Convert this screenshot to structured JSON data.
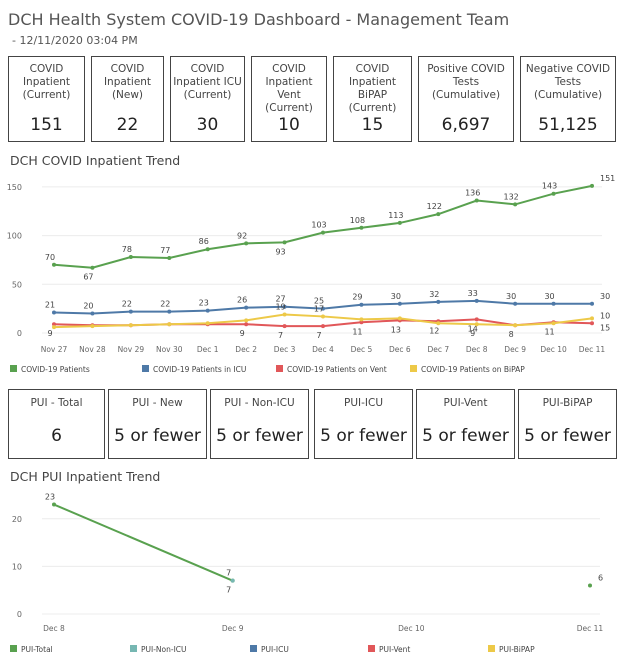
{
  "header": {
    "title": "DCH Health System COVID-19 Dashboard - Management Team",
    "timestamp": " - 12/11/2020 03:04 PM"
  },
  "kpis": [
    {
      "label": "COVID\nInpatient\n(Current)",
      "value": "151"
    },
    {
      "label": "COVID\nInpatient\n(New)",
      "value": "22"
    },
    {
      "label": "COVID\nInpatient ICU\n(Current)",
      "value": "30"
    },
    {
      "label": "COVID\nInpatient Vent\n(Current)",
      "value": "10"
    },
    {
      "label": "COVID\nInpatient BiPAP\n(Current)",
      "value": "15"
    },
    {
      "label": "Positive COVID\nTests\n(Cumulative)",
      "value": "6,697"
    },
    {
      "label": "Negative COVID\nTests\n(Cumulative)",
      "value": "51,125"
    }
  ],
  "pui_cards": [
    {
      "label": "PUI - Total",
      "value": "6"
    },
    {
      "label": "PUI - New",
      "value": "5 or fewer"
    },
    {
      "label": "PUI - Non-ICU",
      "value": "5 or fewer"
    },
    {
      "label": "PUI-ICU",
      "value": "5 or fewer"
    },
    {
      "label": "PUI-Vent",
      "value": "5 or fewer"
    },
    {
      "label": "PUI-BiPAP",
      "value": "5 or fewer"
    }
  ],
  "chart_data": [
    {
      "type": "line",
      "title": "DCH COVID Inpatient Trend",
      "x": [
        "Nov 27",
        "Nov 28",
        "Nov 29",
        "Nov 30",
        "Dec 1",
        "Dec 2",
        "Dec 3",
        "Dec 4",
        "Dec 5",
        "Dec 6",
        "Dec 7",
        "Dec 8",
        "Dec 9",
        "Dec 10",
        "Dec 11"
      ],
      "yticks": [
        0,
        50,
        100,
        150
      ],
      "ylim": [
        0,
        155
      ],
      "legend_position": "bottom",
      "series": [
        {
          "name": "COVID-19 Patients",
          "color": "#59a14f",
          "values": [
            70,
            67,
            78,
            77,
            86,
            92,
            93,
            103,
            108,
            113,
            122,
            136,
            132,
            143,
            151
          ],
          "labels": [
            "70",
            "67",
            "78",
            "77",
            "86",
            "92",
            "93",
            "103",
            "108",
            "113",
            "122",
            "136",
            "132",
            "143",
            "151"
          ]
        },
        {
          "name": "COVID-19 Patients in ICU",
          "color": "#4e79a7",
          "values": [
            21,
            20,
            22,
            22,
            23,
            26,
            27,
            25,
            29,
            30,
            32,
            33,
            30,
            30,
            30
          ],
          "labels": [
            "21",
            "20",
            "22",
            "22",
            "23",
            "26",
            "27",
            "25",
            "29",
            "30",
            "32",
            "33",
            "30",
            "30",
            "30"
          ]
        },
        {
          "name": "COVID-19 Patients on Vent",
          "color": "#e15759",
          "values": [
            9,
            8,
            8,
            9,
            9,
            9,
            7,
            7,
            11,
            13,
            12,
            14,
            8,
            11,
            10
          ],
          "labels": [
            "9",
            "",
            "",
            "",
            "",
            "9",
            "7",
            "7",
            "11",
            "13",
            "12",
            "14",
            "8",
            "11",
            "10"
          ]
        },
        {
          "name": "COVID-19 Patients on BiPAP",
          "color": "#edc948",
          "values": [
            6,
            7,
            8,
            9,
            10,
            13,
            19,
            17,
            14,
            15,
            10,
            9,
            8,
            10,
            15
          ],
          "labels": [
            "",
            "",
            "",
            "",
            "",
            "",
            "19",
            "17",
            "",
            "",
            "",
            "9",
            "",
            "",
            "15"
          ]
        }
      ]
    },
    {
      "type": "line",
      "title": "DCH PUI Inpatient Trend",
      "x": [
        "Dec 8",
        "Dec 9",
        "Dec 10",
        "Dec 11"
      ],
      "yticks": [
        0,
        10,
        20
      ],
      "ylim": [
        0,
        25
      ],
      "legend_position": "bottom",
      "series": [
        {
          "name": "PUI-Total",
          "color": "#59a14f",
          "values": [
            23,
            7,
            null,
            6
          ],
          "labels": [
            "23",
            "7",
            "",
            "6"
          ]
        },
        {
          "name": "PUI-Non-ICU",
          "color": "#76b7b2",
          "values": [
            null,
            7,
            null,
            null
          ],
          "labels": [
            "",
            "7",
            "",
            ""
          ]
        },
        {
          "name": "PUI-ICU",
          "color": "#4e79a7",
          "values": [
            null,
            null,
            null,
            null
          ],
          "labels": [
            "",
            "",
            "",
            ""
          ]
        },
        {
          "name": "PUI-Vent",
          "color": "#e15759",
          "values": [
            null,
            null,
            null,
            null
          ],
          "labels": [
            "",
            "",
            "",
            ""
          ]
        },
        {
          "name": "PUI-BiPAP",
          "color": "#edc948",
          "values": [
            null,
            null,
            null,
            null
          ],
          "labels": [
            "",
            "",
            "",
            ""
          ]
        }
      ]
    }
  ]
}
